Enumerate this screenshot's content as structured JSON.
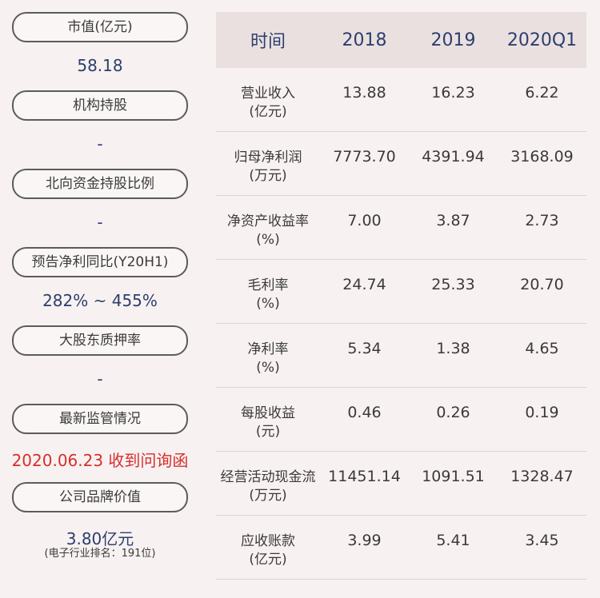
{
  "left_panel": {
    "items": [
      {
        "label": "市值(亿元)",
        "value": "58.18"
      },
      {
        "label": "机构持股",
        "value": "-"
      },
      {
        "label": "北向资金持股比例",
        "value": "-"
      },
      {
        "label": "预告净利同比(Y20H1)",
        "value": "282% ~ 455%"
      },
      {
        "label": "大股东质押率",
        "value": "-"
      },
      {
        "label": "最新监管情况",
        "value": "2020.06.23 收到问询函"
      },
      {
        "label": "公司品牌价值",
        "value": "3.80亿元",
        "note": "(电子行业排名：191位)"
      }
    ],
    "colors": {
      "value": "#2b3f6e",
      "alert": "#d5302c"
    }
  },
  "table": {
    "headers": [
      "时间",
      "2018",
      "2019",
      "2020Q1"
    ],
    "rows": [
      {
        "label": "营业收入",
        "unit": "(亿元)",
        "values": [
          "13.88",
          "16.23",
          "6.22"
        ]
      },
      {
        "label": "归母净利润",
        "unit": "(万元)",
        "values": [
          "7773.70",
          "4391.94",
          "3168.09"
        ]
      },
      {
        "label": "净资产收益率",
        "unit": "(%)",
        "values": [
          "7.00",
          "3.87",
          "2.73"
        ]
      },
      {
        "label": "毛利率",
        "unit": "(%)",
        "values": [
          "24.74",
          "25.33",
          "20.70"
        ]
      },
      {
        "label": "净利率",
        "unit": "(%)",
        "values": [
          "5.34",
          "1.38",
          "4.65"
        ]
      },
      {
        "label": "每股收益",
        "unit": "(元)",
        "values": [
          "0.46",
          "0.26",
          "0.19"
        ]
      },
      {
        "label": "经营活动现金流",
        "unit": "(万元)",
        "values": [
          "11451.14",
          "1091.51",
          "1328.47"
        ]
      },
      {
        "label": "应收账款",
        "unit": "(亿元)",
        "values": [
          "3.99",
          "5.41",
          "3.45"
        ]
      }
    ],
    "colors": {
      "header_bg": "#ebe0e0",
      "header_text": "#2b3f6e"
    }
  }
}
